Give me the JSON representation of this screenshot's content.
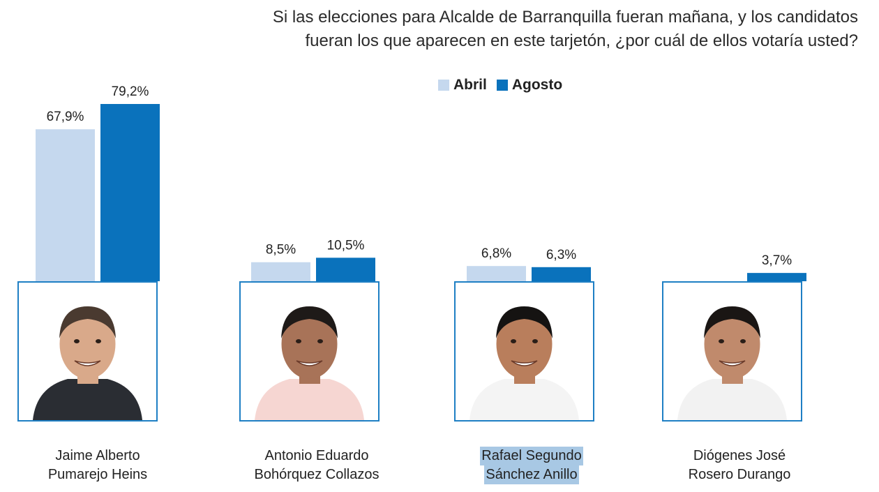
{
  "title": {
    "line1": "Si las elecciones para Alcalde de Barranquilla fueran mañana, y los candidatos",
    "line2": "fueran los que aparecen en este tarjetón, ¿por cuál de ellos votaría usted?"
  },
  "colors": {
    "abril": "#c5d8ee",
    "agosto": "#0a72bc",
    "frame": "#1e7fc4"
  },
  "chart_data": {
    "type": "bar",
    "title": "Si las elecciones para Alcalde de Barranquilla fueran mañana, y los candidatos fueran los que aparecen en este tarjetón, ¿por cuál de ellos votaría usted?",
    "legend_position": "top-center",
    "grid": false,
    "ylim": [
      0,
      100
    ],
    "categories": [
      "Jaime Alberto Pumarejo Heins",
      "Antonio Eduardo Bohórquez Collazos",
      "Rafael Segundo Sánchez Anillo",
      "Diógenes José Rosero Durango"
    ],
    "series": [
      {
        "name": "Abril",
        "values": [
          67.9,
          8.5,
          6.8,
          null
        ],
        "labels": [
          "67,9%",
          "8,5%",
          "6,8%",
          ""
        ]
      },
      {
        "name": "Agosto",
        "values": [
          79.2,
          10.5,
          6.3,
          3.7
        ],
        "labels": [
          "79,2%",
          "10,5%",
          "6,3%",
          "3,7%"
        ]
      }
    ]
  },
  "candidates": [
    {
      "line1": "Jaime Alberto",
      "line2": "Pumarejo Heins",
      "shirt": "#2a2d33",
      "skin": "#d9a98a",
      "hair": "#4a3a30"
    },
    {
      "line1": "Antonio Eduardo",
      "line2": "Bohórquez Collazos",
      "shirt": "#f6d6d2",
      "skin": "#a87358",
      "hair": "#1e1a18"
    },
    {
      "line1": "Rafael Segundo",
      "line2": "Sánchez Anillo",
      "shirt": "#f4f4f4",
      "skin": "#b97e5c",
      "hair": "#151312"
    },
    {
      "line1": "Diógenes José",
      "line2": "Rosero Durango",
      "shirt": "#f2f2f2",
      "skin": "#c08a6c",
      "hair": "#1a1614"
    }
  ]
}
